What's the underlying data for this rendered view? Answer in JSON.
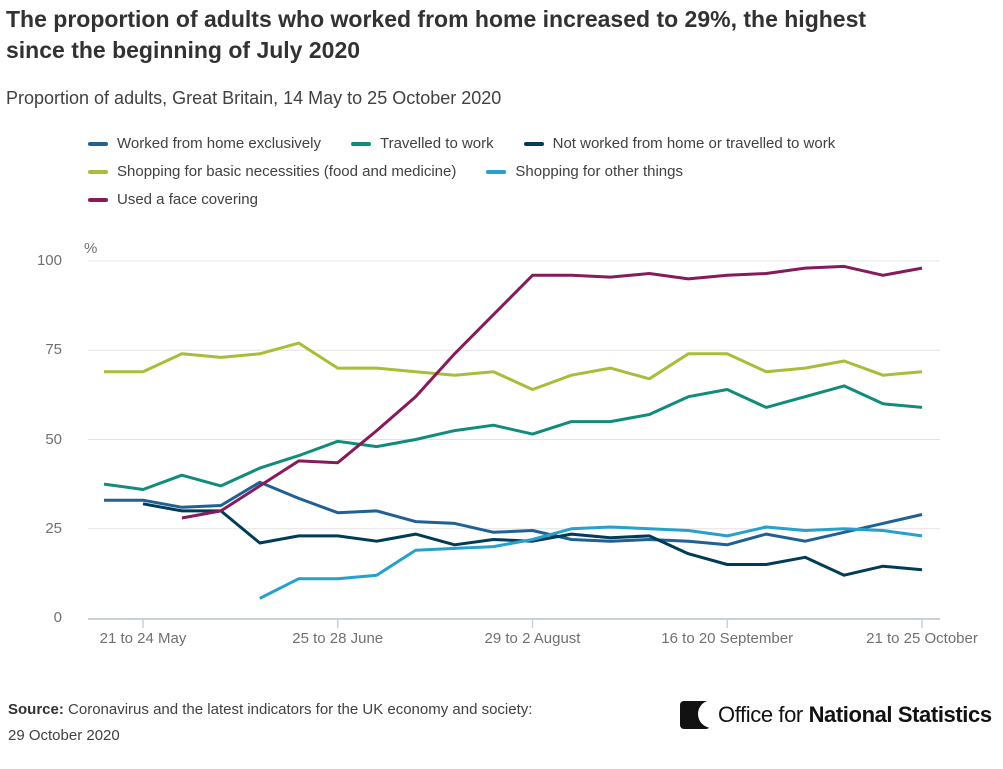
{
  "title": {
    "line1": "The proportion of adults who worked from home increased to 29%, the highest",
    "line2": "since the beginning of July 2020"
  },
  "subtitle": "Proportion of adults, Great Britain, 14 May to 25 October 2020",
  "legend_rows": [
    [
      0,
      1,
      2
    ],
    [
      3,
      4
    ],
    [
      5
    ]
  ],
  "chart_data": {
    "type": "line",
    "title": "Proportion of adults, Great Britain, 14 May to 25 October 2020",
    "ylabel_unit": "%",
    "ylim": [
      0,
      100
    ],
    "yticks": [
      0,
      25,
      50,
      75,
      100
    ],
    "grid": "horizontal",
    "legend_position": "top",
    "n_points": 22,
    "x_tick_labels": [
      "21 to 24 May",
      "25 to 28 June",
      "29 to 2 August",
      "16 to 20 September",
      "21 to 25 October"
    ],
    "x_tick_indices": [
      1,
      6,
      11,
      16,
      21
    ],
    "series": [
      {
        "id": "worked-from-home-exclusively",
        "name": "Worked from home exclusively",
        "color": "#206095",
        "values": [
          33,
          33,
          31,
          31.5,
          38,
          33.5,
          29.5,
          30,
          27,
          26.5,
          24,
          24.5,
          22,
          21.5,
          22,
          21.5,
          20.5,
          23.5,
          21.5,
          24,
          26.5,
          29
        ]
      },
      {
        "id": "travelled-to-work",
        "name": "Travelled to work",
        "color": "#118C7B",
        "values": [
          37.5,
          36,
          40,
          37,
          42,
          45.5,
          49.5,
          48,
          50,
          52.5,
          54,
          51.5,
          55,
          55,
          57,
          62,
          64,
          59,
          62,
          65,
          60,
          59
        ]
      },
      {
        "id": "not-worked-from-home-or-travelled",
        "name": "Not worked from home or travelled to work",
        "color": "#003C57",
        "values": [
          null,
          32,
          30,
          30,
          21,
          23,
          23,
          21.5,
          23.5,
          20.5,
          22,
          21.5,
          23.5,
          22.5,
          23,
          18,
          15,
          15,
          17,
          12,
          14.5,
          13.5
        ]
      },
      {
        "id": "shopping-basic-necessities",
        "name": "Shopping for basic necessities (food and medicine)",
        "color": "#A8BD3A",
        "values": [
          69,
          69,
          74,
          73,
          74,
          77,
          70,
          70,
          69,
          68,
          69,
          64,
          68,
          70,
          67,
          74,
          74,
          69,
          70,
          72,
          68,
          69
        ]
      },
      {
        "id": "shopping-other-things",
        "name": "Shopping for other things",
        "color": "#27A0CC",
        "values": [
          null,
          null,
          null,
          null,
          5.5,
          11,
          11,
          12,
          19,
          19.5,
          20,
          22,
          25,
          25.5,
          25,
          24.5,
          23,
          25.5,
          24.5,
          25,
          24.5,
          23
        ]
      },
      {
        "id": "used-a-face-covering",
        "name": "Used a face covering",
        "color": "#871A5B",
        "values": [
          null,
          null,
          28,
          30,
          37,
          44,
          43.5,
          52.5,
          62,
          74,
          85,
          96,
          96,
          95.5,
          96.5,
          95,
          96,
          96.5,
          98,
          98.5,
          96,
          98
        ]
      }
    ]
  },
  "axis_colors": {
    "gridline": "#e4e4e4",
    "axis_line": "#c9d1dd",
    "tick": "#c9d1dd"
  },
  "source": {
    "label": "Source:",
    "text": "Coronavirus and the latest indicators for the UK economy and society:",
    "text_line2": "29 October 2020"
  },
  "logo": {
    "prefix": "Office for ",
    "bold": "National Statistics"
  }
}
